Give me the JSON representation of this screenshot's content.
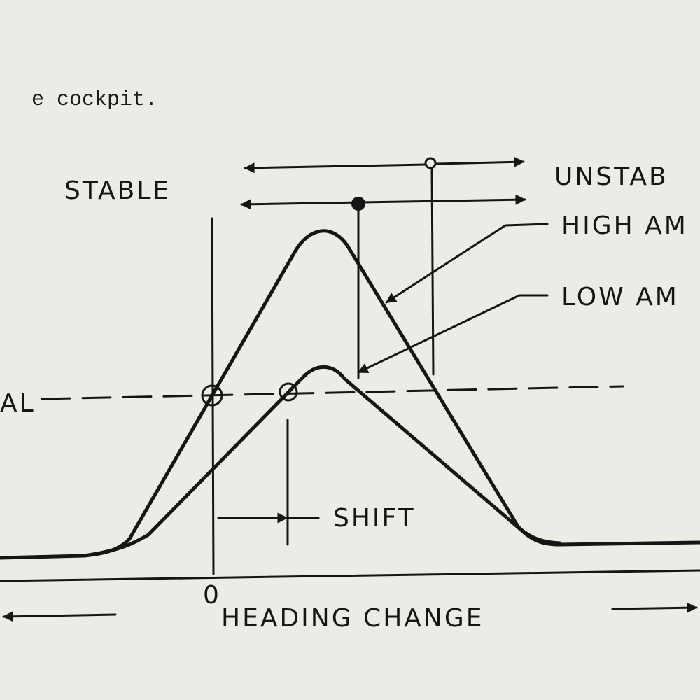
{
  "text": {
    "line": "e cockpit."
  },
  "diagram": {
    "labels": {
      "stable": "STABLE",
      "unstable": "UNSTAB",
      "high_amplitude": "HIGH AM",
      "low_amplitude": "LOW AM",
      "neutral": "AL",
      "shift": "SHIFT",
      "origin": "0",
      "x_axis": "HEADING CHANGE"
    }
  }
}
